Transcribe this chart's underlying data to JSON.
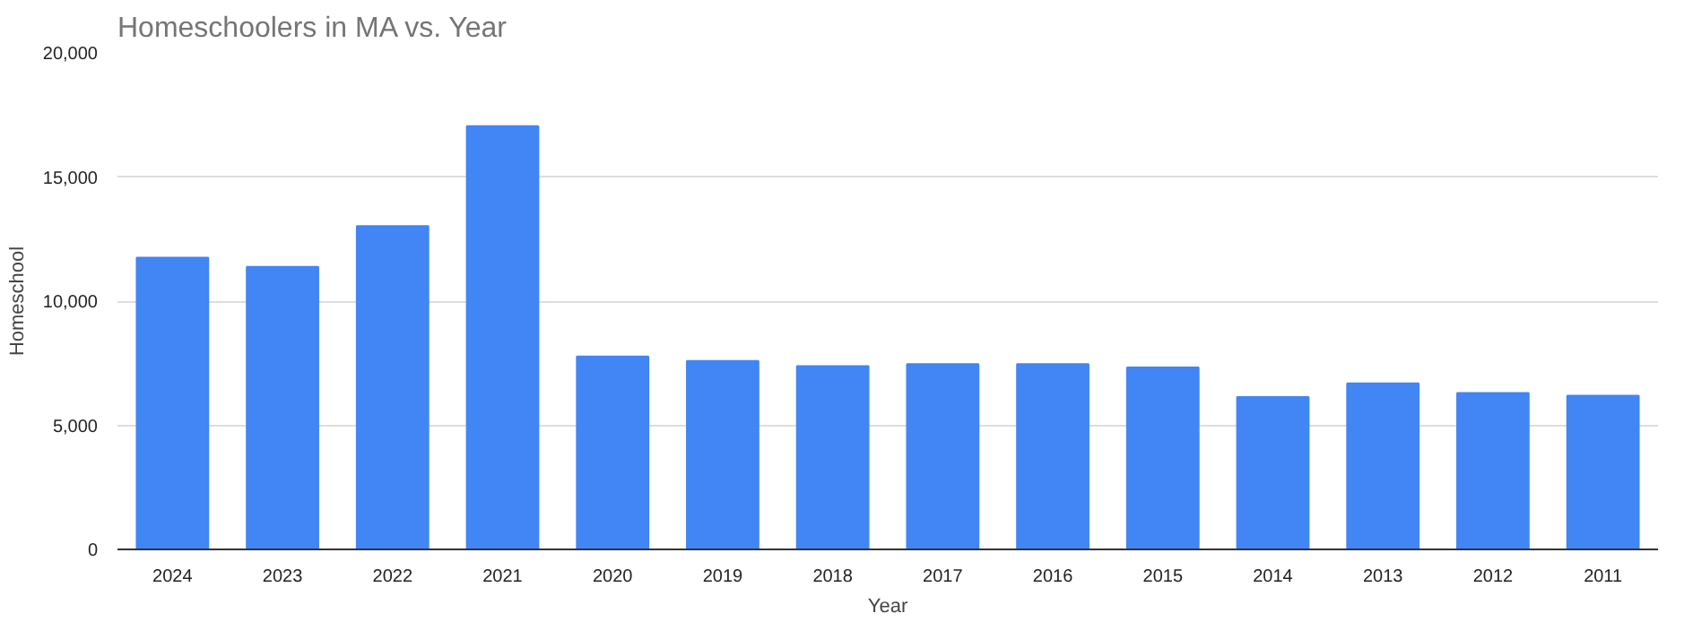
{
  "chart_data": {
    "type": "bar",
    "title": "Homeschoolers in MA vs. Year",
    "xlabel": "Year",
    "ylabel": "Homeschool",
    "categories": [
      "2024",
      "2023",
      "2022",
      "2021",
      "2020",
      "2019",
      "2018",
      "2017",
      "2016",
      "2015",
      "2014",
      "2013",
      "2012",
      "2011"
    ],
    "values": [
      11750,
      11380,
      13020,
      17050,
      7770,
      7590,
      7380,
      7460,
      7460,
      7330,
      6140,
      6690,
      6300,
      6190
    ],
    "color": "#4285f4",
    "ylim": [
      0,
      20000
    ],
    "yticks": [
      {
        "value": 0,
        "label": "0"
      },
      {
        "value": 5000,
        "label": "5,000"
      },
      {
        "value": 10000,
        "label": "10,000"
      },
      {
        "value": 15000,
        "label": "15,000"
      },
      {
        "value": 20000,
        "label": "20,000"
      }
    ],
    "grid": "y"
  }
}
